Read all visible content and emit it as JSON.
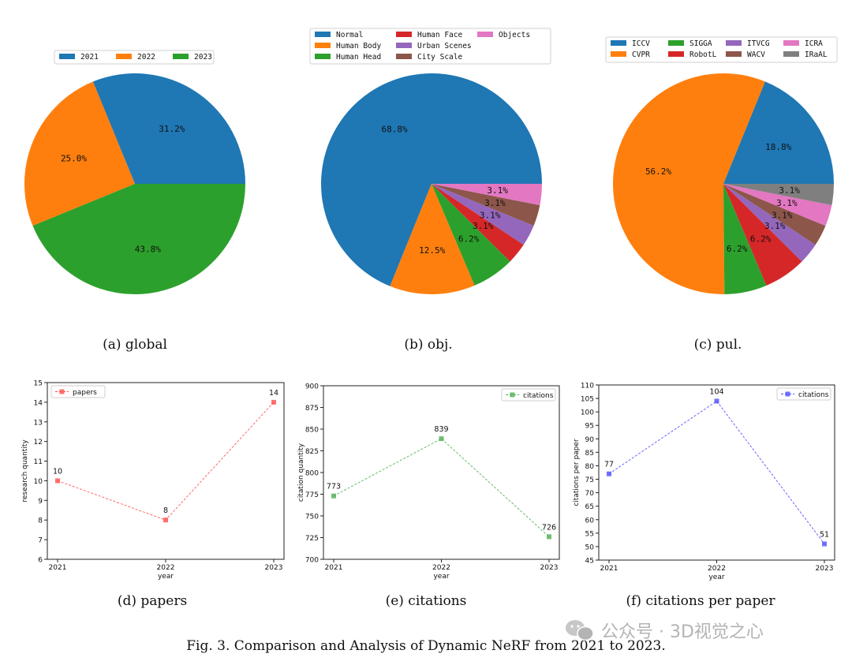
{
  "figure": {
    "caption": "Fig. 3.  Comparison and Analysis of Dynamic NeRF from 2021 to 2023.",
    "watermark": "公众号 · 3D视觉之心"
  },
  "chart_data": [
    {
      "id": "a",
      "type": "pie",
      "title": "",
      "subcaption": "(a) global",
      "legend_position": "top",
      "slices": [
        {
          "label": "2021",
          "value": 31.2,
          "pct_label": "31.2%",
          "color": "#1f77b4"
        },
        {
          "label": "2022",
          "value": 25.0,
          "pct_label": "25.0%",
          "color": "#ff7f0e"
        },
        {
          "label": "2023",
          "value": 43.8,
          "pct_label": "43.8%",
          "color": "#2ca02c"
        }
      ]
    },
    {
      "id": "b",
      "type": "pie",
      "title": "",
      "subcaption": "(b) obj.",
      "legend_position": "top",
      "slices": [
        {
          "label": "Normal",
          "value": 68.8,
          "pct_label": "68.8%",
          "color": "#1f77b4"
        },
        {
          "label": "Human Body",
          "value": 12.5,
          "pct_label": "12.5%",
          "color": "#ff7f0e"
        },
        {
          "label": "Human Head",
          "value": 6.2,
          "pct_label": "6.2%",
          "color": "#2ca02c"
        },
        {
          "label": "Human Face",
          "value": 3.1,
          "pct_label": "3.1%",
          "color": "#d62728"
        },
        {
          "label": "Urban Scenes",
          "value": 3.1,
          "pct_label": "3.1%",
          "color": "#9467bd"
        },
        {
          "label": "City Scale",
          "value": 3.1,
          "pct_label": "3.1%",
          "color": "#8c564b"
        },
        {
          "label": "Objects",
          "value": 3.1,
          "pct_label": "3.1%",
          "color": "#e377c2"
        }
      ]
    },
    {
      "id": "c",
      "type": "pie",
      "title": "",
      "subcaption": "(c) pul.",
      "legend_position": "top",
      "slices": [
        {
          "label": "ICCV",
          "value": 18.8,
          "pct_label": "18.8%",
          "color": "#1f77b4"
        },
        {
          "label": "CVPR",
          "value": 56.2,
          "pct_label": "56.2%",
          "color": "#ff7f0e"
        },
        {
          "label": "SIGGA",
          "value": 6.2,
          "pct_label": "6.2%",
          "color": "#2ca02c"
        },
        {
          "label": "RobotL",
          "value": 6.2,
          "pct_label": "6.2%",
          "color": "#d62728"
        },
        {
          "label": "ITVCG",
          "value": 3.1,
          "pct_label": "3.1%",
          "color": "#9467bd"
        },
        {
          "label": "WACV",
          "value": 3.1,
          "pct_label": "3.1%",
          "color": "#8c564b"
        },
        {
          "label": "ICRA",
          "value": 3.1,
          "pct_label": "3.1%",
          "color": "#e377c2"
        },
        {
          "label": "IRaAL",
          "value": 3.1,
          "pct_label": "3.1%",
          "color": "#7f7f7f"
        }
      ]
    },
    {
      "id": "d",
      "type": "line",
      "subcaption": "(d) papers",
      "xlabel": "year",
      "ylabel": "research quantity",
      "x": [
        "2021",
        "2022",
        "2023"
      ],
      "ylim": [
        6,
        15
      ],
      "yticks": [
        6,
        7,
        8,
        9,
        10,
        11,
        12,
        13,
        14,
        15
      ],
      "legend_position": "top-left",
      "series": [
        {
          "name": "papers",
          "values": [
            10,
            8,
            14
          ],
          "color": "#ff4d4d"
        }
      ]
    },
    {
      "id": "e",
      "type": "line",
      "subcaption": "(e) citations",
      "xlabel": "year",
      "ylabel": "citation quantity",
      "x": [
        "2021",
        "2022",
        "2023"
      ],
      "ylim": [
        700,
        900
      ],
      "yticks": [
        700,
        725,
        750,
        775,
        800,
        825,
        850,
        875,
        900
      ],
      "legend_position": "top-right",
      "series": [
        {
          "name": "citations",
          "values": [
            773,
            839,
            726
          ],
          "color": "#4caf50"
        }
      ]
    },
    {
      "id": "f",
      "type": "line",
      "subcaption": "(f) citations per paper",
      "xlabel": "year",
      "ylabel": "citations per paper",
      "x": [
        "2021",
        "2022",
        "2023"
      ],
      "ylim": [
        45,
        110
      ],
      "yticks": [
        45,
        50,
        55,
        60,
        65,
        70,
        75,
        80,
        85,
        90,
        95,
        100,
        105,
        110
      ],
      "legend_position": "top-right",
      "series": [
        {
          "name": "citations",
          "values": [
            77,
            104,
            51
          ],
          "color": "#4d4dff"
        }
      ]
    }
  ]
}
